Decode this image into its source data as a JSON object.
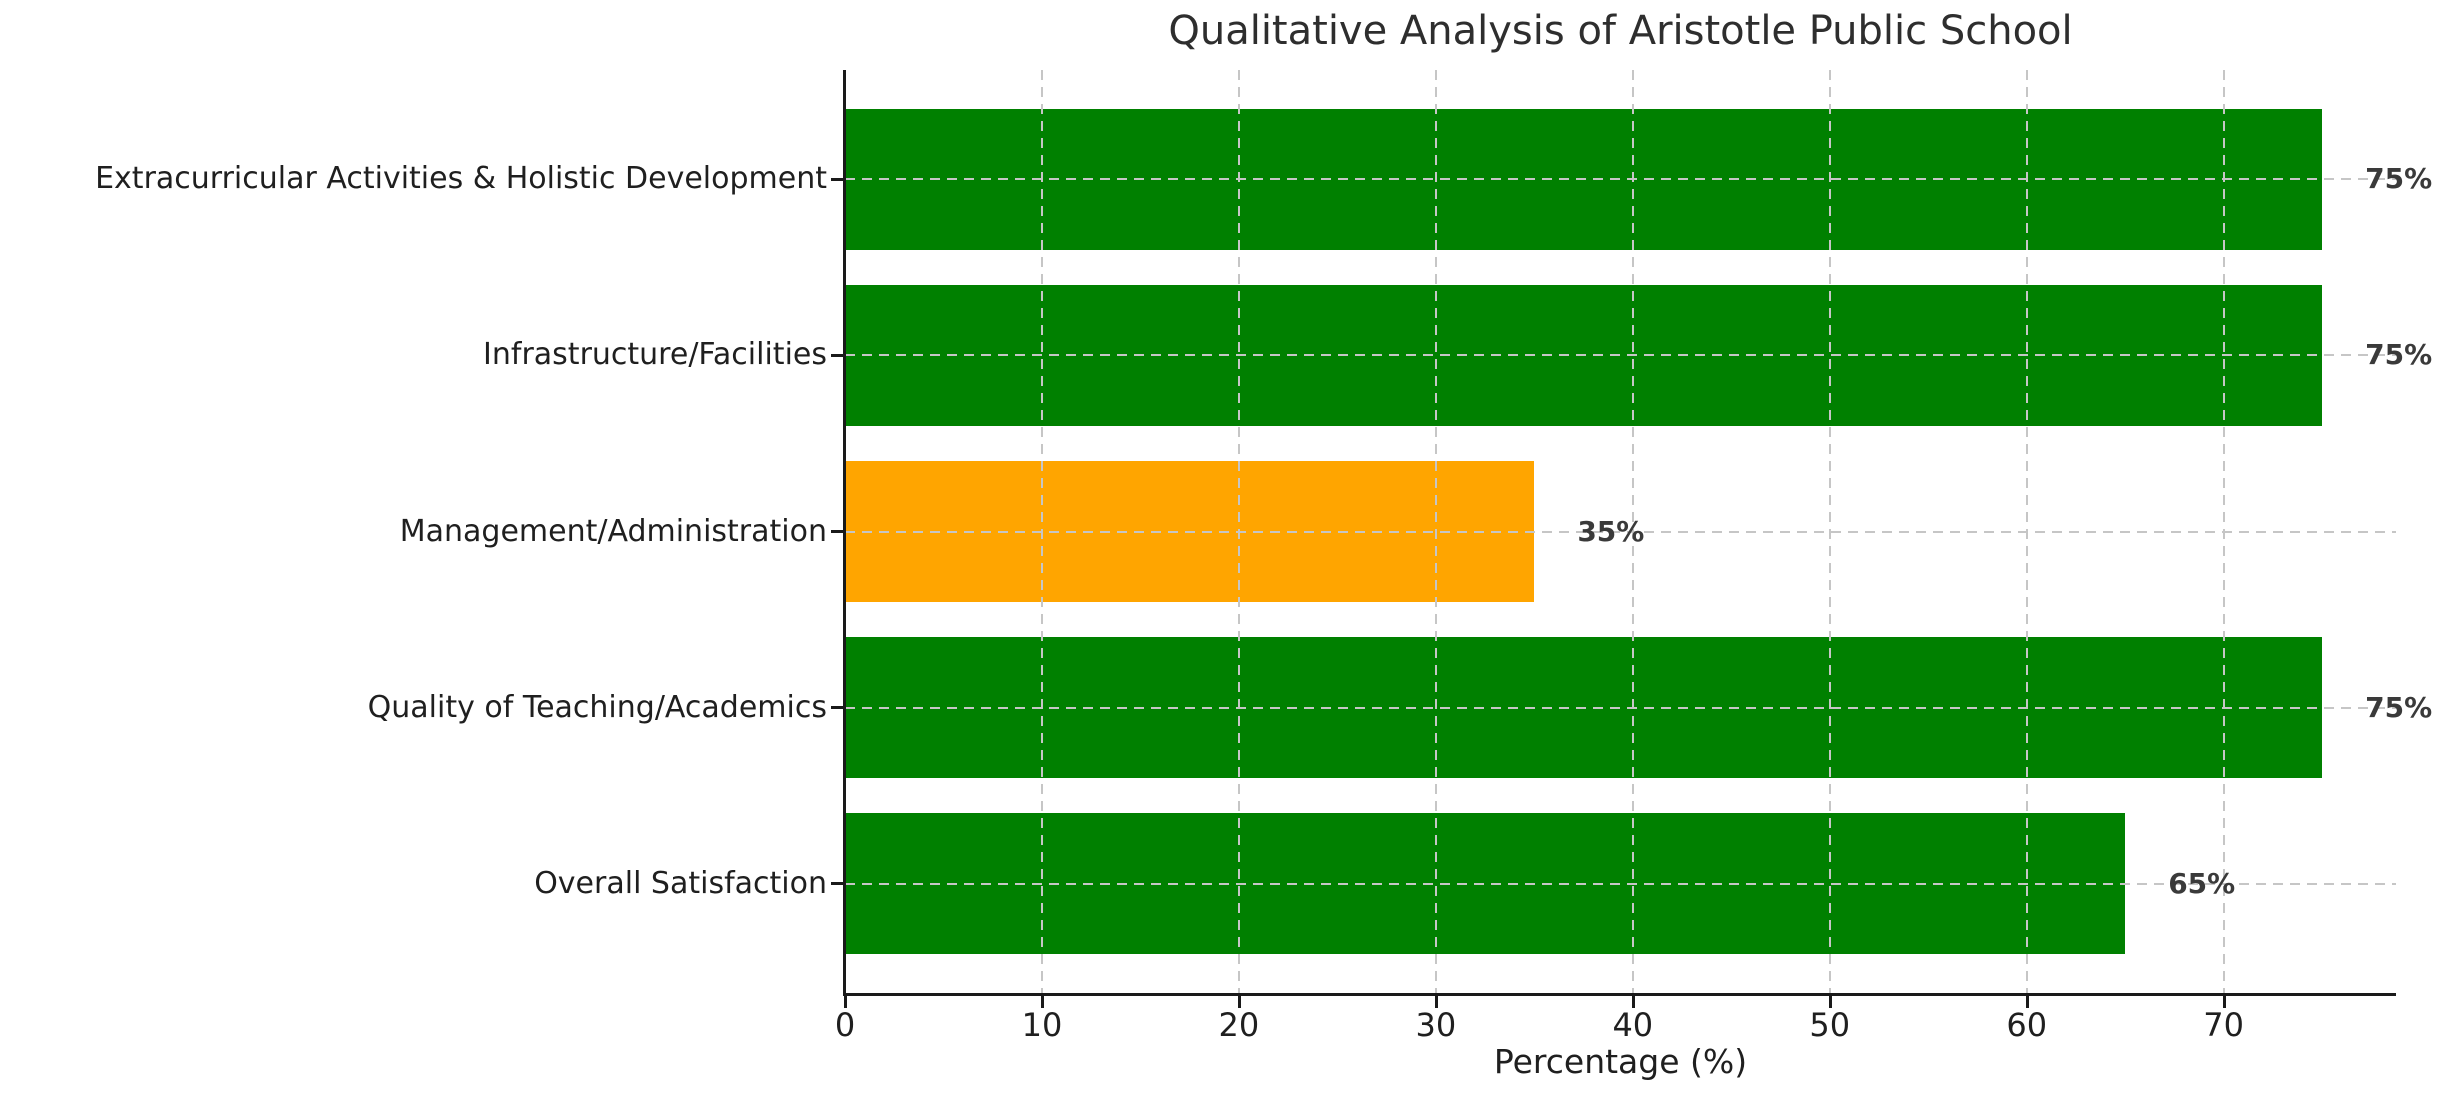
{
  "title": "Qualitative Analysis of Aristotle Public School",
  "xlabel": "Percentage (%)",
  "colors": {
    "bar_green": "#008000",
    "bar_orange": "#FFA500",
    "grid": "#c6c6c6",
    "axis": "#1a1a1a",
    "title_text": "#2e2e2e",
    "tick_text": "#1f1f1f",
    "value_text": "#3a3a3a",
    "background": "#ffffff"
  },
  "chart_data": {
    "type": "bar",
    "orientation": "horizontal",
    "title": "Qualitative Analysis of Aristotle Public School",
    "xlabel": "Percentage (%)",
    "ylabel": "",
    "categories": [
      "Extracurricular Activities & Holistic Development",
      "Infrastructure/Facilities",
      "Management/Administration",
      "Quality of Teaching/Academics",
      "Overall Satisfaction"
    ],
    "values": [
      75,
      75,
      35,
      75,
      65
    ],
    "value_labels": [
      "75%",
      "75%",
      "35%",
      "75%",
      "65%"
    ],
    "bar_colors": [
      "#008000",
      "#008000",
      "#FFA500",
      "#008000",
      "#008000"
    ],
    "xlim": [
      0,
      78.75
    ],
    "xticks": [
      0,
      10,
      20,
      30,
      40,
      50,
      60,
      70
    ],
    "xtick_labels": [
      "0",
      "10",
      "20",
      "30",
      "40",
      "50",
      "60",
      "70"
    ],
    "grid": "dashed, horizontal and vertical, drawn over bars",
    "legend": "none"
  }
}
